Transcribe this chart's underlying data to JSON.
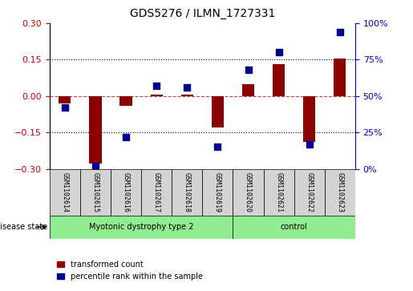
{
  "title": "GDS5276 / ILMN_1727331",
  "samples": [
    "GSM1102614",
    "GSM1102615",
    "GSM1102616",
    "GSM1102617",
    "GSM1102618",
    "GSM1102619",
    "GSM1102620",
    "GSM1102621",
    "GSM1102622",
    "GSM1102623"
  ],
  "transformed_count": [
    -0.03,
    -0.28,
    -0.04,
    0.005,
    0.005,
    -0.13,
    0.05,
    0.13,
    -0.19,
    0.155
  ],
  "percentile_rank": [
    42,
    2,
    22,
    57,
    56,
    15,
    68,
    80,
    17,
    94
  ],
  "groups": [
    {
      "label": "Myotonic dystrophy type 2",
      "start": 0,
      "end": 6,
      "color": "#90EE90"
    },
    {
      "label": "control",
      "start": 6,
      "end": 10,
      "color": "#90EE90"
    }
  ],
  "disease_state_label": "disease state",
  "ylim_left": [
    -0.3,
    0.3
  ],
  "ylim_right": [
    0,
    100
  ],
  "yticks_left": [
    -0.3,
    -0.15,
    0,
    0.15,
    0.3
  ],
  "yticks_right": [
    0,
    25,
    50,
    75,
    100
  ],
  "hline_y": 0,
  "dotted_lines": [
    -0.15,
    0.15
  ],
  "bar_color": "#8B0000",
  "scatter_color": "#00008B",
  "bar_width": 0.4,
  "scatter_size": 40,
  "left_tick_color": "#CC0000",
  "right_tick_color": "#0000CC",
  "legend_bar_label": "transformed count",
  "legend_scatter_label": "percentile rank within the sample",
  "group_box_color": "#D3D3D3",
  "group_label_color": "#228B22"
}
